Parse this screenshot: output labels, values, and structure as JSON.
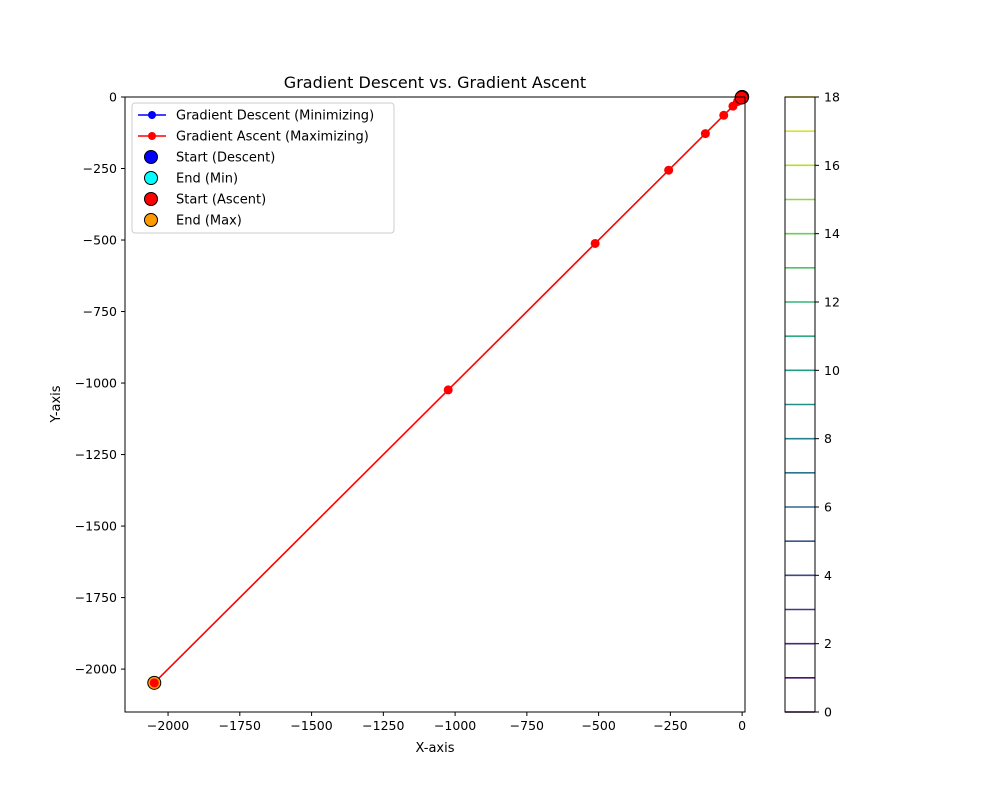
{
  "chart_data": [
    {
      "type": "line",
      "title": "Gradient Descent vs. Gradient Ascent",
      "xlabel": "X-axis",
      "ylabel": "Y-axis",
      "xlim": [
        -2150,
        10
      ],
      "ylim": [
        -2150,
        0
      ],
      "xticks": [
        -2000,
        -1750,
        -1500,
        -1250,
        -1000,
        -750,
        -500,
        -250,
        0
      ],
      "yticks": [
        -2000,
        -1750,
        -1500,
        -1250,
        -1000,
        -750,
        -500,
        -250,
        0
      ],
      "xtick_labels": [
        "−2000",
        "−1750",
        "−1500",
        "−1250",
        "−1000",
        "−750",
        "−500",
        "−250",
        "0"
      ],
      "ytick_labels": [
        "−2000",
        "−1750",
        "−1500",
        "−1250",
        "−1000",
        "−750",
        "−500",
        "−250",
        "0"
      ],
      "grid": false,
      "legend_position": "top-left",
      "series": [
        {
          "name": "Gradient Descent (Minimizing)",
          "color": "#0000ff",
          "marker": "circle",
          "x": [
            0
          ],
          "y": [
            0
          ]
        },
        {
          "name": "Gradient Ascent (Maximizing)",
          "color": "#ff0000",
          "marker": "circle",
          "x": [
            -2,
            -4,
            -8,
            -16,
            -32,
            -64,
            -128,
            -256,
            -512,
            -1024,
            -2048
          ],
          "y": [
            -2,
            -4,
            -8,
            -16,
            -32,
            -64,
            -128,
            -256,
            -512,
            -1024,
            -2048
          ]
        }
      ],
      "special_points": [
        {
          "name": "Start (Descent)",
          "color": "#0000ff",
          "x": 0,
          "y": 0
        },
        {
          "name": "End (Min)",
          "color": "#00ffff",
          "x": 0,
          "y": 0
        },
        {
          "name": "Start (Ascent)",
          "color": "#ff0000",
          "x": -2,
          "y": -2
        },
        {
          "name": "End (Max)",
          "color": "#ff9900",
          "x": -2048,
          "y": -2048
        }
      ]
    },
    {
      "type": "colorbar",
      "range": [
        0,
        18
      ],
      "ticks": [
        0,
        2,
        4,
        6,
        8,
        10,
        12,
        14,
        16,
        18
      ],
      "levels": [
        0,
        1,
        2,
        3,
        4,
        5,
        6,
        7,
        8,
        9,
        10,
        11,
        12,
        13,
        14,
        15,
        16,
        17,
        18
      ],
      "colormap": "viridis"
    }
  ]
}
